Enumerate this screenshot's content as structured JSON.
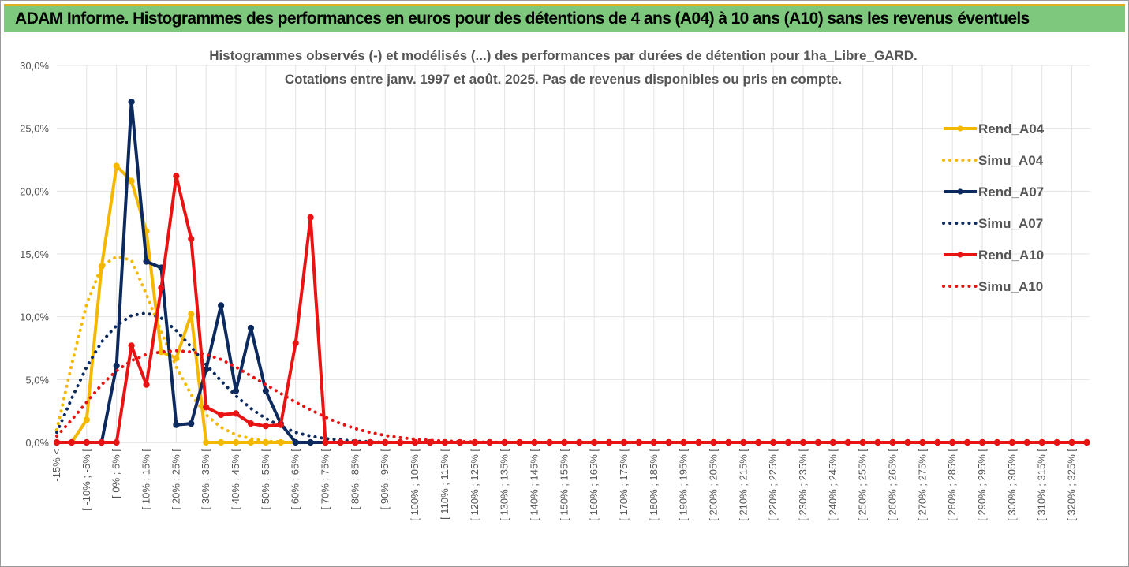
{
  "banner": {
    "title": "ADAM Informe. Histogrammes des performances en euros pour des détentions de 4 ans (A04) à 10 ans (A10) sans les revenus éventuels"
  },
  "chart_data": {
    "type": "line",
    "title": "Histogrammes observés (-) et modélisés (...) des performances par durées de détention pour 1ha_Libre_GARD.",
    "subtitle": "Cotations entre janv. 1997 et août. 2025. Pas de revenus disponibles ou pris en compte.",
    "xlabel": "",
    "ylabel": "",
    "ylim": [
      0,
      30
    ],
    "yticks": [
      "0,0%",
      "5,0%",
      "10,0%",
      "15,0%",
      "20,0%",
      "25,0%",
      "30,0%"
    ],
    "grid": true,
    "legend_position": "right",
    "categories": [
      "-15% <",
      "[ -15% ; -10% [",
      "[ -10% ; -5% [",
      "[ -5% ; 0% [",
      "[ 0% ; 5% [",
      "[ 5% ; 10% [",
      "[ 10% ; 15% [",
      "[ 15% ; 20% [",
      "[ 20% ; 25% [",
      "[ 25% ; 30% [",
      "[ 30% ; 35% [",
      "[ 35% ; 40% [",
      "[ 40% ; 45% [",
      "[ 45% ; 50% [",
      "[ 50% ; 55% [",
      "[ 55% ; 60% [",
      "[ 60% ; 65% [",
      "[ 65% ; 70% [",
      "[ 70% ; 75% [",
      "[ 75% ; 80% [",
      "[ 80% ; 85% [",
      "[ 85% ; 90% [",
      "[ 90% ; 95% [",
      "[ 95% ; 100% [",
      "[ 100% ; 105% [",
      "[ 105% ; 110% [",
      "[ 110% ; 115% [",
      "[ 115% ; 120% [",
      "[ 120% ; 125% [",
      "[ 125% ; 130% [",
      "[ 130% ; 135% [",
      "[ 135% ; 140% [",
      "[ 140% ; 145% [",
      "[ 145% ; 150% [",
      "[ 150% ; 155% [",
      "[ 155% ; 160% [",
      "[ 160% ; 165% [",
      "[ 165% ; 170% [",
      "[ 170% ; 175% [",
      "[ 175% ; 180% [",
      "[ 180% ; 185% [",
      "[ 185% ; 190% [",
      "[ 190% ; 195% [",
      "[ 195% ; 200% [",
      "[ 200% ; 205% [",
      "[ 205% ; 210% [",
      "[ 210% ; 215% [",
      "[ 215% ; 220% [",
      "[ 220% ; 225% [",
      "[ 225% ; 230% [",
      "[ 230% ; 235% [",
      "[ 235% ; 240% [",
      "[ 240% ; 245% [",
      "[ 245% ; 250% [",
      "[ 250% ; 255% [",
      "[ 255% ; 260% [",
      "[ 260% ; 265% [",
      "[ 265% ; 270% [",
      "[ 270% ; 275% [",
      "[ 275% ; 280% [",
      "[ 280% ; 285% [",
      "[ 285% ; 290% [",
      "[ 290% ; 295% [",
      "[ 295% ; 300% [",
      "[ 300% ; 305% [",
      "[ 305% ; 310% [",
      "[ 310% ; 315% [",
      "[ 315% ; 320% [",
      "[ 320% ; 325% [",
      "[ 325% ; 330% ["
    ],
    "xtick_labels": [
      "-15% <",
      "[ -10% ; -5% [",
      "[ 0% ; 5% [",
      "[ 10% ; 15% [",
      "[ 20% ; 25% [",
      "[ 30% ; 35% [",
      "[ 40% ; 45% [",
      "[ 50% ; 55% [",
      "[ 60% ; 65% [",
      "[ 70% ; 75% [",
      "[ 80% ; 85% [",
      "[ 90% ; 95% [",
      "[ 100% ; 105% [",
      "[ 110% ; 115% [",
      "[ 120% ; 125% [",
      "[ 130% ; 135% [",
      "[ 140% ; 145% [",
      "[ 150% ; 155% [",
      "[ 160% ; 165% [",
      "[ 170% ; 175% [",
      "[ 180% ; 185% [",
      "[ 190% ; 195% [",
      "[ 200% ; 205% [",
      "[ 210% ; 215% [",
      "[ 220% ; 225% [",
      "[ 230% ; 235% [",
      "[ 240% ; 245% [",
      "[ 250% ; 255% [",
      "[ 260% ; 265% [",
      "[ 270% ; 275% [",
      "[ 280% ; 285% [",
      "[ 290% ; 295% [",
      "[ 300% ; 305% [",
      "[ 310% ; 315% [",
      "[ 320% ; 325% ["
    ],
    "series": [
      {
        "name": "Rend_A04",
        "color": "#f5b800",
        "style": "solid",
        "markers": true,
        "values": [
          0,
          0,
          1.8,
          14.0,
          22.0,
          20.8,
          16.8,
          7.2,
          6.7,
          10.2,
          0,
          0,
          0,
          0,
          0,
          0,
          0,
          0,
          0,
          0,
          0,
          0,
          0,
          0,
          0,
          0,
          0,
          0,
          0,
          0,
          0,
          0,
          0,
          0,
          0,
          0,
          0,
          0,
          0,
          0,
          0,
          0,
          0,
          0,
          0,
          0,
          0,
          0,
          0,
          0,
          0,
          0,
          0,
          0,
          0,
          0,
          0,
          0,
          0,
          0,
          0,
          0,
          0,
          0,
          0,
          0,
          0,
          0,
          0,
          0
        ]
      },
      {
        "name": "Simu_A04",
        "color": "#f5b800",
        "style": "dotted",
        "markers": false,
        "values": [
          1.0,
          6.2,
          11.0,
          14.0,
          14.8,
          14.5,
          11.8,
          8.8,
          6.0,
          3.8,
          2.2,
          1.2,
          0.6,
          0.3,
          0.1,
          0.05,
          0,
          0,
          0,
          0,
          0,
          0,
          0,
          0,
          0,
          0,
          0,
          0,
          0,
          0,
          0,
          0,
          0,
          0,
          0,
          0,
          0,
          0,
          0,
          0,
          0,
          0,
          0,
          0,
          0,
          0,
          0,
          0,
          0,
          0,
          0,
          0,
          0,
          0,
          0,
          0,
          0,
          0,
          0,
          0,
          0,
          0,
          0,
          0,
          0,
          0,
          0,
          0,
          0,
          0
        ]
      },
      {
        "name": "Rend_A07",
        "color": "#0d2a5e",
        "style": "solid",
        "markers": true,
        "values": [
          0,
          0,
          0,
          0,
          6.1,
          27.1,
          14.4,
          13.9,
          1.4,
          1.5,
          5.8,
          10.9,
          4.1,
          9.1,
          4.1,
          1.5,
          0,
          0,
          0,
          0,
          0,
          0,
          0,
          0,
          0,
          0,
          0,
          0,
          0,
          0,
          0,
          0,
          0,
          0,
          0,
          0,
          0,
          0,
          0,
          0,
          0,
          0,
          0,
          0,
          0,
          0,
          0,
          0,
          0,
          0,
          0,
          0,
          0,
          0,
          0,
          0,
          0,
          0,
          0,
          0,
          0,
          0,
          0,
          0,
          0,
          0,
          0,
          0,
          0,
          0
        ]
      },
      {
        "name": "Simu_A07",
        "color": "#0d2a5e",
        "style": "dotted",
        "markers": false,
        "values": [
          0.8,
          3.5,
          6.0,
          8.0,
          9.3,
          10.1,
          10.3,
          9.9,
          8.9,
          7.6,
          6.2,
          4.9,
          3.7,
          2.7,
          1.9,
          1.3,
          0.8,
          0.5,
          0.3,
          0.2,
          0.1,
          0.05,
          0,
          0,
          0,
          0,
          0,
          0,
          0,
          0,
          0,
          0,
          0,
          0,
          0,
          0,
          0,
          0,
          0,
          0,
          0,
          0,
          0,
          0,
          0,
          0,
          0,
          0,
          0,
          0,
          0,
          0,
          0,
          0,
          0,
          0,
          0,
          0,
          0,
          0,
          0,
          0,
          0,
          0,
          0,
          0,
          0,
          0,
          0,
          0
        ]
      },
      {
        "name": "Rend_A10",
        "color": "#e81414",
        "style": "solid",
        "markers": true,
        "values": [
          0,
          0,
          0,
          0,
          0,
          7.7,
          4.6,
          12.3,
          21.2,
          16.2,
          2.8,
          2.2,
          2.3,
          1.5,
          1.3,
          1.4,
          7.9,
          17.9,
          0,
          0,
          0,
          0,
          0,
          0,
          0,
          0,
          0,
          0,
          0,
          0,
          0,
          0,
          0,
          0,
          0,
          0,
          0,
          0,
          0,
          0,
          0,
          0,
          0,
          0,
          0,
          0,
          0,
          0,
          0,
          0,
          0,
          0,
          0,
          0,
          0,
          0,
          0,
          0,
          0,
          0,
          0,
          0,
          0,
          0,
          0,
          0,
          0,
          0,
          0,
          0
        ]
      },
      {
        "name": "Simu_A10",
        "color": "#e81414",
        "style": "dotted",
        "markers": false,
        "values": [
          0.5,
          1.8,
          3.2,
          4.6,
          5.7,
          6.5,
          7.0,
          7.2,
          7.3,
          7.2,
          7.0,
          6.6,
          6.0,
          5.3,
          4.6,
          3.9,
          3.2,
          2.6,
          2.0,
          1.5,
          1.1,
          0.8,
          0.55,
          0.38,
          0.26,
          0.17,
          0.11,
          0.07,
          0.04,
          0.02,
          0.01,
          0,
          0,
          0,
          0,
          0,
          0,
          0,
          0,
          0,
          0,
          0,
          0,
          0,
          0,
          0,
          0,
          0,
          0,
          0,
          0,
          0,
          0,
          0,
          0,
          0,
          0,
          0,
          0,
          0,
          0,
          0,
          0,
          0,
          0,
          0,
          0,
          0,
          0,
          0
        ]
      }
    ]
  }
}
